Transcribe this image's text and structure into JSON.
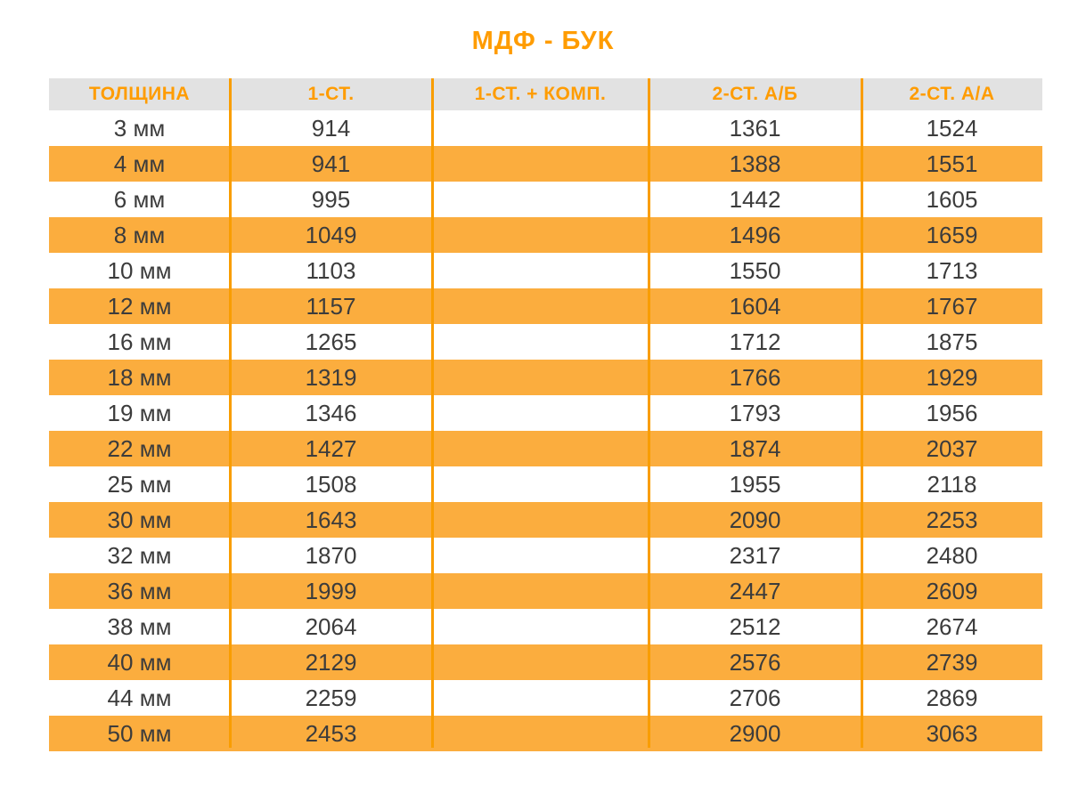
{
  "title": "МДФ - БУК",
  "table": {
    "columns": [
      "ТОЛЩИНА",
      "1-СТ.",
      "1-СТ. + КОМП.",
      "2-СТ. А/Б",
      "2-СТ. А/А"
    ],
    "rows": [
      {
        "cells": [
          "3 мм",
          "914",
          "",
          "1361",
          "1524"
        ]
      },
      {
        "cells": [
          "4 мм",
          "941",
          "",
          "1388",
          "1551"
        ]
      },
      {
        "cells": [
          "6 мм",
          "995",
          "",
          "1442",
          "1605"
        ]
      },
      {
        "cells": [
          "8 мм",
          "1049",
          "",
          "1496",
          "1659"
        ]
      },
      {
        "cells": [
          "10 мм",
          "1103",
          "",
          "1550",
          "1713"
        ]
      },
      {
        "cells": [
          "12 мм",
          "1157",
          "",
          "1604",
          "1767"
        ]
      },
      {
        "cells": [
          "16 мм",
          "1265",
          "",
          "1712",
          "1875"
        ]
      },
      {
        "cells": [
          "18 мм",
          "1319",
          "",
          "1766",
          "1929"
        ]
      },
      {
        "cells": [
          "19 мм",
          "1346",
          "",
          "1793",
          "1956"
        ]
      },
      {
        "cells": [
          "22 мм",
          "1427",
          "",
          "1874",
          "2037"
        ]
      },
      {
        "cells": [
          "25 мм",
          "1508",
          "",
          "1955",
          "2118"
        ]
      },
      {
        "cells": [
          "30 мм",
          "1643",
          "",
          "2090",
          "2253"
        ]
      },
      {
        "cells": [
          "32 мм",
          "1870",
          "",
          "2317",
          "2480"
        ]
      },
      {
        "cells": [
          "36 мм",
          "1999",
          "",
          "2447",
          "2609"
        ]
      },
      {
        "cells": [
          "38 мм",
          "2064",
          "",
          "2512",
          "2674"
        ]
      },
      {
        "cells": [
          "40 мм",
          "2129",
          "",
          "2576",
          "2739"
        ]
      },
      {
        "cells": [
          "44 мм",
          "2259",
          "",
          "2706",
          "2869"
        ]
      },
      {
        "cells": [
          "50 мм",
          "2453",
          "",
          "2900",
          "3063"
        ]
      }
    ]
  },
  "colors": {
    "accent_orange": "#FF9C00",
    "row_orange": "#FBAD3E",
    "divider_orange": "#F99D00",
    "header_background": "#E2E2E2",
    "data_text": "#3C3C3C"
  }
}
